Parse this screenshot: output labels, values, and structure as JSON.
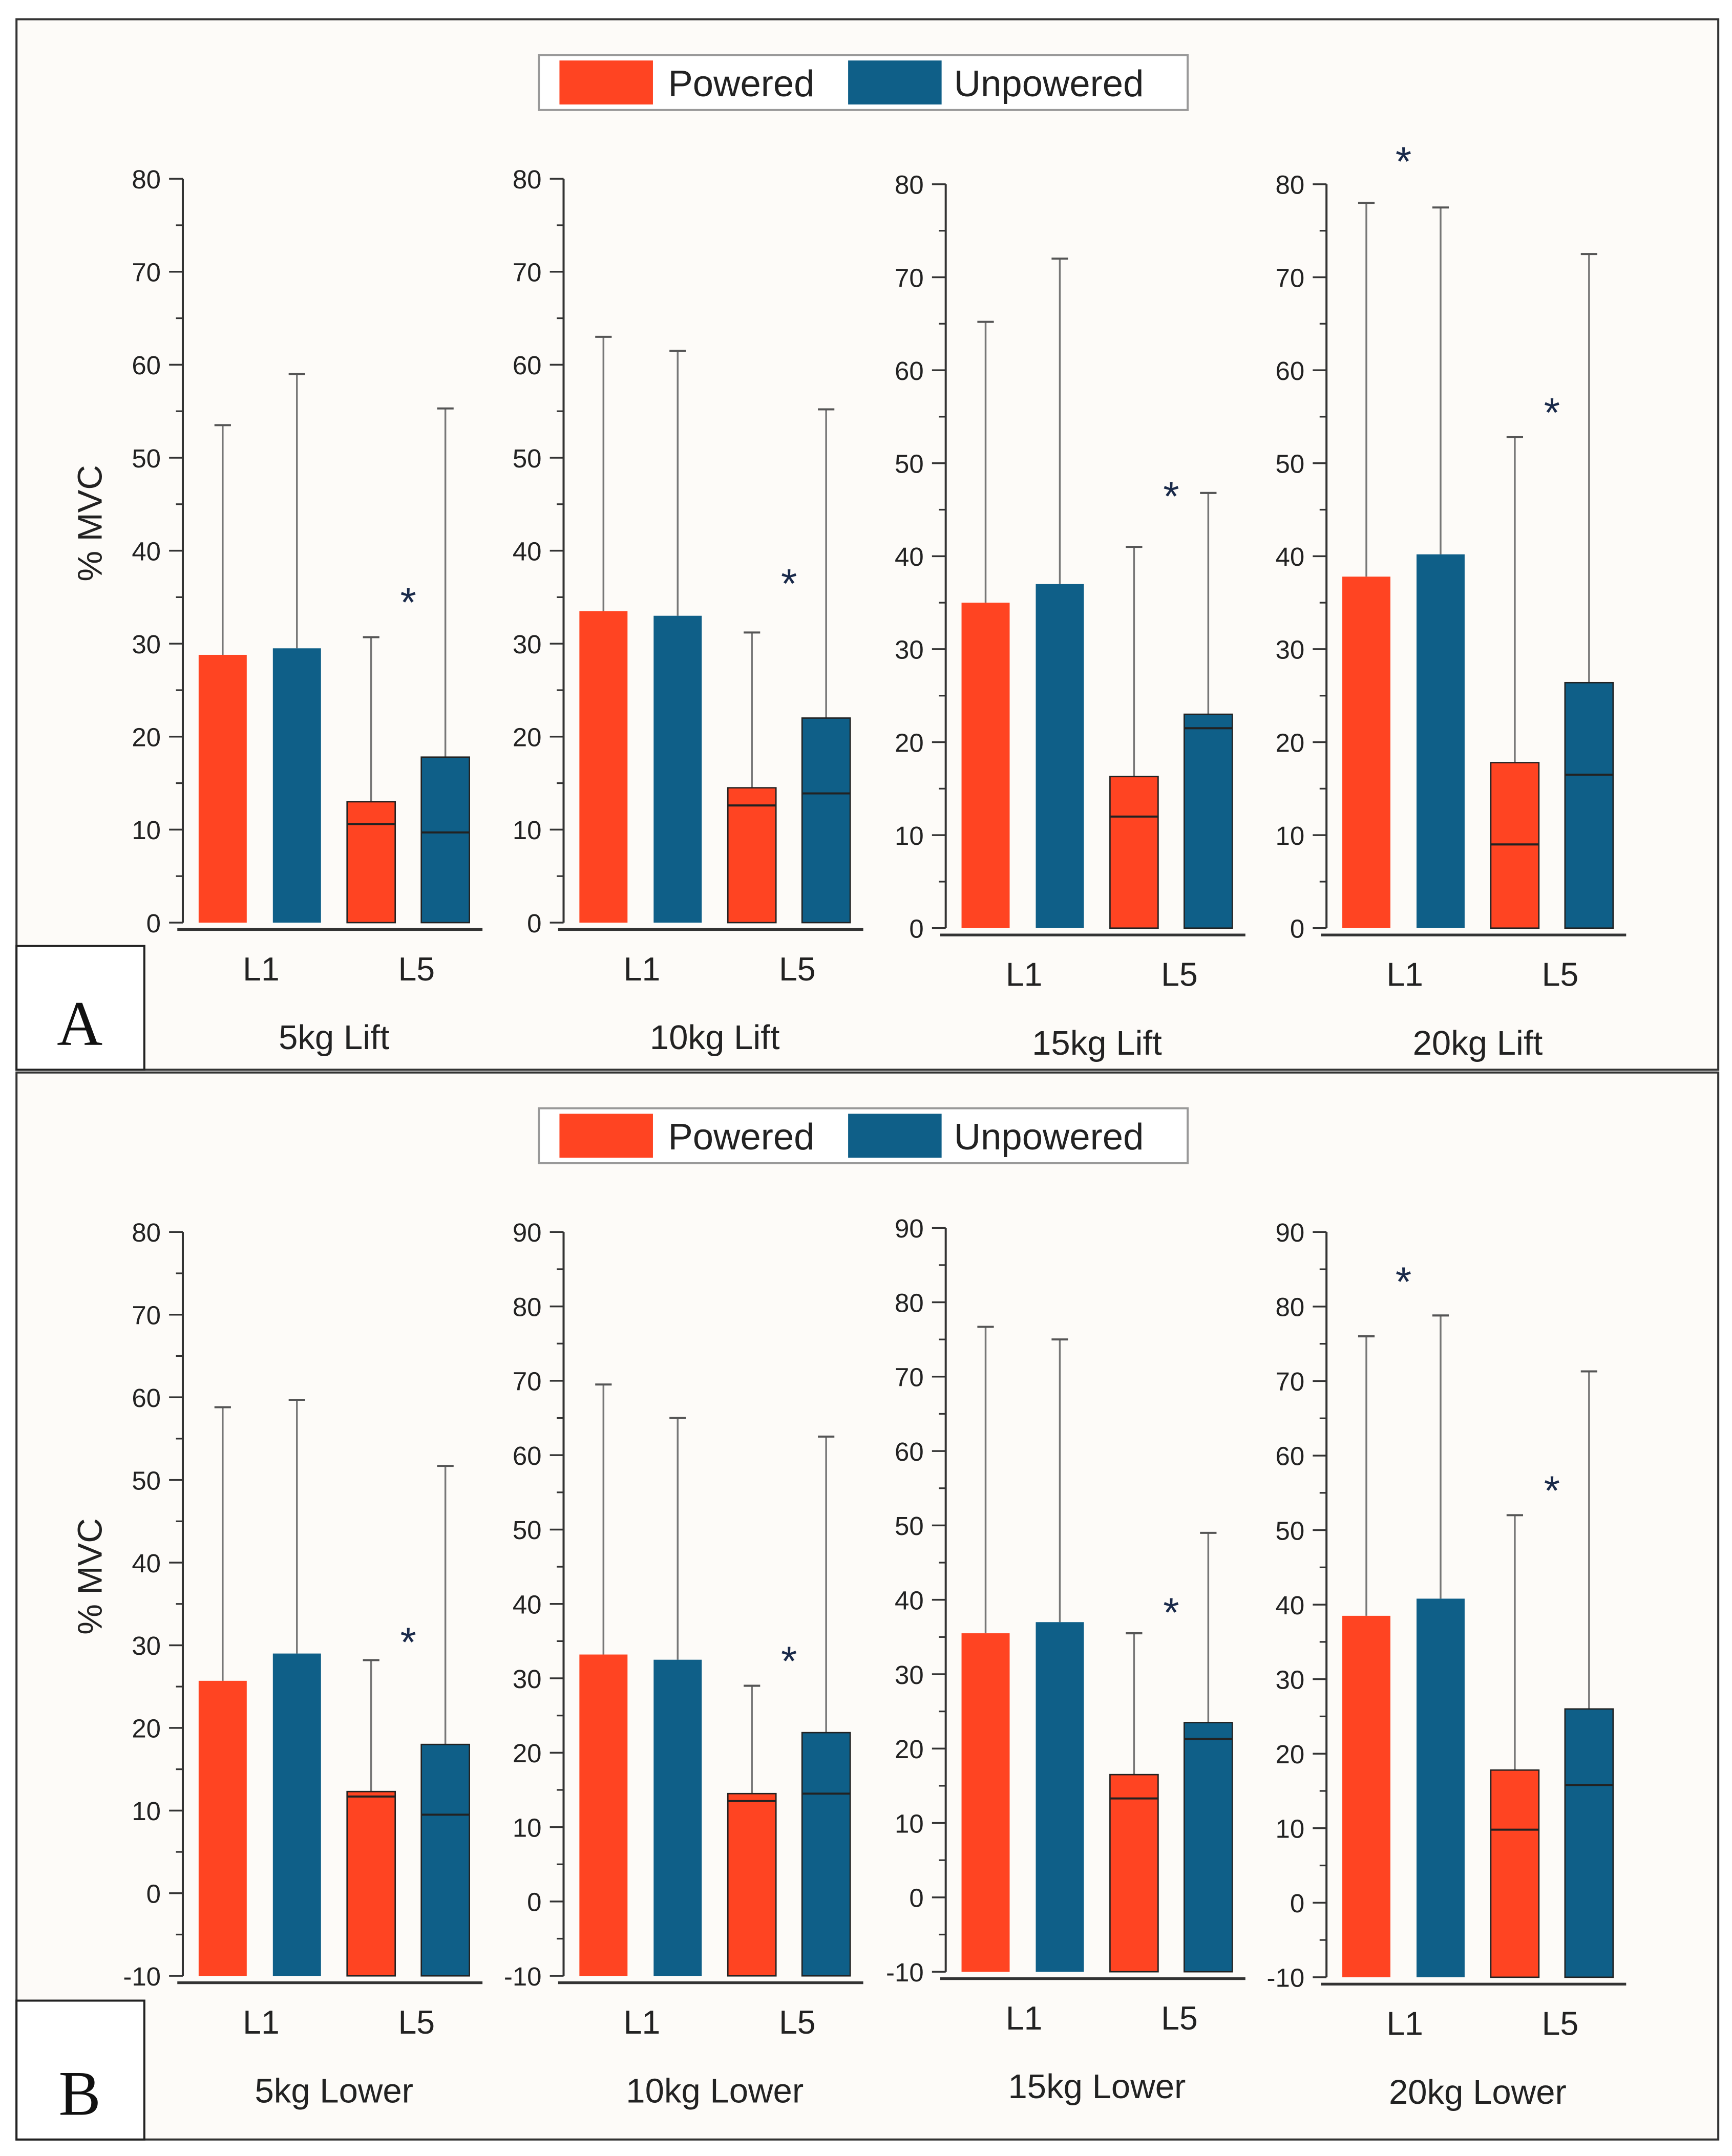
{
  "chart_data": {
    "type": "bar",
    "colors": {
      "Powered": "#FF4422",
      "Unpowered": "#0F5F88",
      "background": "#FDFBF8"
    },
    "legend": {
      "entries": [
        "Powered",
        "Unpowered"
      ],
      "placement": "top-center"
    },
    "ylabel": "% MVC",
    "categories": [
      "L1",
      "L5"
    ],
    "panels": [
      {
        "letter": "A",
        "charts": [
          {
            "title": "5kg Lift",
            "ylim": [
              0,
              80
            ],
            "yticks": [
              0,
              10,
              20,
              30,
              40,
              50,
              60,
              70,
              80
            ],
            "series": [
              {
                "name": "Powered",
                "values": [
                  28.8,
                  13.0
                ],
                "error_upper": [
                  53.5,
                  30.7
                ],
                "median": [
                  null,
                  10.6
                ]
              },
              {
                "name": "Unpowered",
                "values": [
                  29.5,
                  17.8
                ],
                "error_upper": [
                  59.0,
                  55.3
                ],
                "median": [
                  null,
                  9.7
                ]
              }
            ],
            "significance": [
              {
                "category": "L5",
                "label": "*",
                "y": 35
              }
            ]
          },
          {
            "title": "10kg Lift",
            "ylim": [
              0,
              80
            ],
            "yticks": [
              0,
              10,
              20,
              30,
              40,
              50,
              60,
              70,
              80
            ],
            "series": [
              {
                "name": "Powered",
                "values": [
                  33.5,
                  14.5
                ],
                "error_upper": [
                  63.0,
                  31.2
                ],
                "median": [
                  null,
                  12.6
                ]
              },
              {
                "name": "Unpowered",
                "values": [
                  33.0,
                  22.0
                ],
                "error_upper": [
                  61.5,
                  55.2
                ],
                "median": [
                  null,
                  13.9
                ]
              }
            ],
            "significance": [
              {
                "category": "L5",
                "label": "*",
                "y": 37
              }
            ]
          },
          {
            "title": "15kg Lift",
            "ylim": [
              0,
              80
            ],
            "yticks": [
              0,
              10,
              20,
              30,
              40,
              50,
              60,
              70,
              80
            ],
            "series": [
              {
                "name": "Powered",
                "values": [
                  35.0,
                  16.3
                ],
                "error_upper": [
                  65.2,
                  41.0
                ],
                "median": [
                  null,
                  12.0
                ]
              },
              {
                "name": "Unpowered",
                "values": [
                  37.0,
                  23.0
                ],
                "error_upper": [
                  72.0,
                  46.8
                ],
                "median": [
                  null,
                  21.5
                ]
              }
            ],
            "significance": [
              {
                "category": "L5",
                "label": "*",
                "y": 47
              }
            ]
          },
          {
            "title": "20kg Lift",
            "ylim": [
              0,
              80
            ],
            "yticks": [
              0,
              10,
              20,
              30,
              40,
              50,
              60,
              70,
              80
            ],
            "series": [
              {
                "name": "Powered",
                "values": [
                  37.8,
                  17.8
                ],
                "error_upper": [
                  78.0,
                  52.8
                ],
                "median": [
                  null,
                  9.0
                ]
              },
              {
                "name": "Unpowered",
                "values": [
                  40.2,
                  26.4
                ],
                "error_upper": [
                  77.5,
                  72.5
                ],
                "median": [
                  null,
                  16.5
                ]
              }
            ],
            "significance": [
              {
                "category": "L1",
                "label": "*",
                "y": 83
              },
              {
                "category": "L5",
                "label": "*",
                "y": 56
              }
            ]
          }
        ]
      },
      {
        "letter": "B",
        "charts": [
          {
            "title": "5kg Lower",
            "ylim": [
              -10,
              80
            ],
            "yticks": [
              -10,
              0,
              10,
              20,
              30,
              40,
              50,
              60,
              70,
              80
            ],
            "series": [
              {
                "name": "Powered",
                "values": [
                  25.7,
                  12.3
                ],
                "error_upper": [
                  58.8,
                  28.2
                ],
                "median": [
                  null,
                  11.7
                ]
              },
              {
                "name": "Unpowered",
                "values": [
                  29.0,
                  18.0
                ],
                "error_upper": [
                  59.7,
                  51.7
                ],
                "median": [
                  null,
                  9.5
                ]
              }
            ],
            "significance": [
              {
                "category": "L5",
                "label": "*",
                "y": 31
              }
            ]
          },
          {
            "title": "10kg Lower",
            "ylim": [
              -10,
              90
            ],
            "yticks": [
              -10,
              0,
              10,
              20,
              30,
              40,
              50,
              60,
              70,
              80,
              90
            ],
            "series": [
              {
                "name": "Powered",
                "values": [
                  33.2,
                  14.5
                ],
                "error_upper": [
                  69.5,
                  29.0
                ],
                "median": [
                  null,
                  13.5
                ]
              },
              {
                "name": "Unpowered",
                "values": [
                  32.5,
                  22.7
                ],
                "error_upper": [
                  65.0,
                  62.5
                ],
                "median": [
                  null,
                  14.5
                ]
              }
            ],
            "significance": [
              {
                "category": "L5",
                "label": "*",
                "y": 33
              }
            ]
          },
          {
            "title": "15kg Lower",
            "ylim": [
              -10,
              90
            ],
            "yticks": [
              -10,
              0,
              10,
              20,
              30,
              40,
              50,
              60,
              70,
              80,
              90
            ],
            "series": [
              {
                "name": "Powered",
                "values": [
                  35.5,
                  16.5
                ],
                "error_upper": [
                  76.7,
                  35.5
                ],
                "median": [
                  null,
                  13.3
                ]
              },
              {
                "name": "Unpowered",
                "values": [
                  37.0,
                  23.5
                ],
                "error_upper": [
                  75.0,
                  49.0
                ],
                "median": [
                  null,
                  21.3
                ]
              }
            ],
            "significance": [
              {
                "category": "L5",
                "label": "*",
                "y": 39
              }
            ]
          },
          {
            "title": "20kg Lower",
            "ylim": [
              -10,
              90
            ],
            "yticks": [
              -10,
              0,
              10,
              20,
              30,
              40,
              50,
              60,
              70,
              80,
              90
            ],
            "series": [
              {
                "name": "Powered",
                "values": [
                  38.5,
                  17.8
                ],
                "error_upper": [
                  76.0,
                  52.0
                ],
                "median": [
                  null,
                  9.8
                ]
              },
              {
                "name": "Unpowered",
                "values": [
                  40.8,
                  26.0
                ],
                "error_upper": [
                  78.8,
                  71.3
                ],
                "median": [
                  null,
                  15.8
                ]
              }
            ],
            "significance": [
              {
                "category": "L1",
                "label": "*",
                "y": 84
              },
              {
                "category": "L5",
                "label": "*",
                "y": 56
              }
            ]
          }
        ]
      }
    ]
  }
}
